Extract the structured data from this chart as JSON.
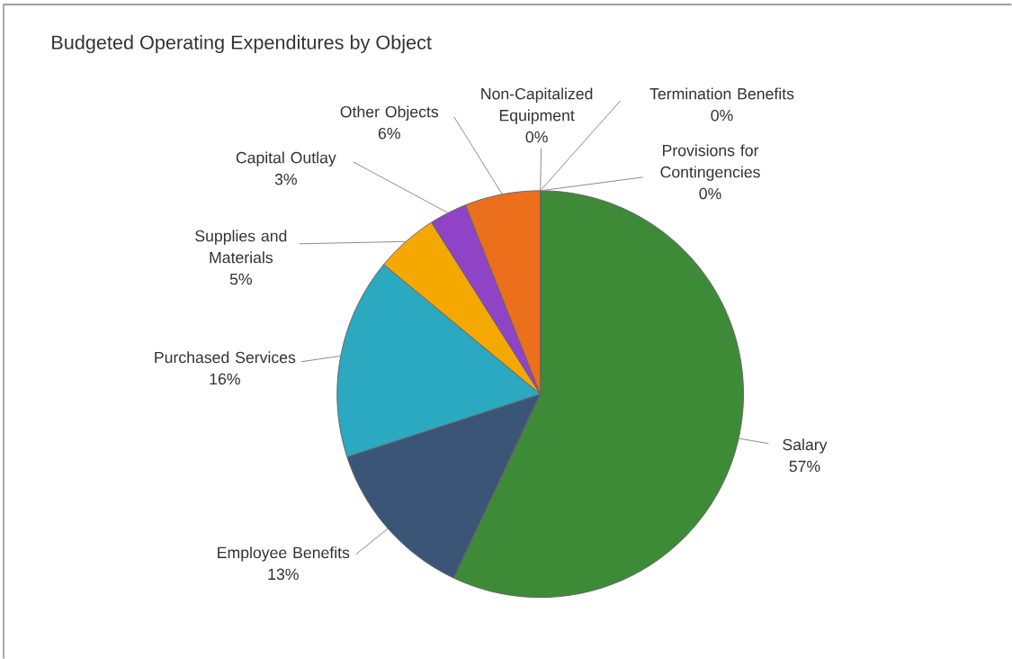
{
  "chart_data": {
    "type": "pie",
    "title": "Budgeted Operating Expenditures by Object",
    "categories": [
      "Salary",
      "Employee Benefits",
      "Purchased Services",
      "Supplies and Materials",
      "Capital Outlay",
      "Other Objects",
      "Non-Capitalized Equipment",
      "Termination Benefits",
      "Provisions for Contingencies"
    ],
    "values": [
      57,
      13,
      16,
      5,
      3,
      6,
      0,
      0,
      0
    ],
    "value_labels": [
      "57%",
      "13%",
      "16%",
      "5%",
      "3%",
      "6%",
      "0%",
      "0%",
      "0%"
    ],
    "colors": [
      "#3d8b37",
      "#3b5577",
      "#2aa9c0",
      "#f5a800",
      "#8f44c8",
      "#ec6f1c",
      "#5a5a5a",
      "#5a5a5a",
      "#5a5a5a"
    ]
  }
}
